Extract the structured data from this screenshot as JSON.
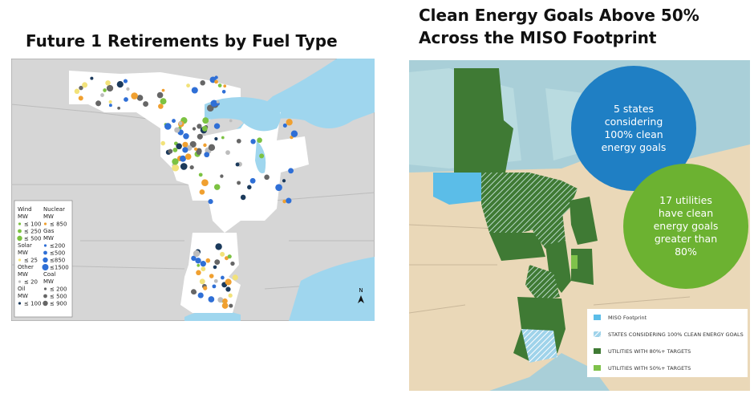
{
  "left": {
    "title": "Future 1 Retirements by Fuel Type",
    "legend": {
      "groups": [
        {
          "name": "Wind",
          "unit": "MW",
          "color": "#7cc242",
          "items": [
            "≤ 100",
            "≤ 250",
            "≤ 500"
          ]
        },
        {
          "name": "Solar",
          "unit": "MW",
          "color": "#f2e27a",
          "items": [
            "≤ 25"
          ]
        },
        {
          "name": "Other",
          "unit": "MW",
          "color": "#bdbdbd",
          "items": [
            "≤ 20"
          ]
        },
        {
          "name": "Oil",
          "unit": "MW",
          "color": "#1b3a5c",
          "items": [
            "≤ 100"
          ]
        },
        {
          "name": "Nuclear",
          "unit": "MW",
          "color": "#f0a030",
          "items": [
            "≤ 850"
          ]
        },
        {
          "name": "Gas",
          "unit": "MW",
          "color": "#2f6fd6",
          "items": [
            "≤200",
            "≤500",
            "≤850",
            "≤1500"
          ]
        },
        {
          "name": "Coal",
          "unit": "MW",
          "color": "#666666",
          "items": [
            "≤ 200",
            "≤ 500",
            "≤ 900"
          ]
        }
      ]
    },
    "north": "N"
  },
  "right": {
    "title": [
      "Clean Energy Goals Above 50%",
      "Across the MISO Footprint"
    ],
    "callouts": [
      {
        "color": "#1f7fc4",
        "lines": [
          "5 states",
          "considering",
          "100% clean",
          "energy goals"
        ]
      },
      {
        "color": "#6cb231",
        "lines": [
          "17 utilities",
          "have clean",
          "energy goals",
          "greater than",
          "80%"
        ]
      }
    ],
    "legend": [
      {
        "label": "MISO Footprint",
        "color": "#5bbde8"
      },
      {
        "label": "STATES CONSIDERING 100% CLEAN ENERGY GOALS",
        "color": "hatch"
      },
      {
        "label": "UTILITIES WITH 80%+ TARGETS",
        "color": "#3f7a34"
      },
      {
        "label": "UTILITIES WITH 50%+ TARGETS",
        "color": "#7fc24b"
      }
    ]
  }
}
